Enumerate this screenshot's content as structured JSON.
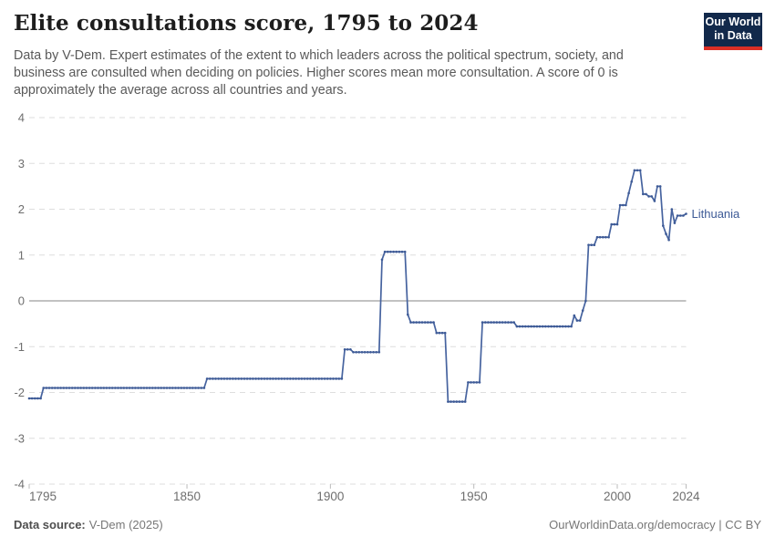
{
  "header": {
    "title": "Elite consultations score, 1795 to 2024",
    "subtitle_lines": [
      "Data by V-Dem. Expert estimates of the extent to which leaders across the political spectrum, society, and",
      "business are consulted when deciding on policies. Higher scores mean more consultation. A score of 0 is",
      "approximately the average across all countries and years."
    ]
  },
  "logo": {
    "line1": "Our World",
    "line2": "in Data",
    "bg_color": "#12294b",
    "accent_color": "#dc2f25"
  },
  "footer": {
    "source_label": "Data source:",
    "source_value": "V-Dem (2025)",
    "license": "OurWorldinData.org/democracy | CC BY"
  },
  "chart_data": {
    "type": "line",
    "title": "Elite consultations score, 1795 to 2024",
    "xlabel": "",
    "ylabel": "",
    "xlim": [
      1795,
      2024
    ],
    "ylim": [
      -4,
      4
    ],
    "x_ticks": [
      1795,
      1850,
      1900,
      1950,
      2000,
      2024
    ],
    "y_ticks": [
      4,
      3,
      2,
      1,
      0,
      -1,
      -2,
      -3,
      -4
    ],
    "grid": "horizontal dashed gridlines; solid line at 0; dashed baseline at -4",
    "legend": "entity label at end of line",
    "colors": {
      "line": "#46639f",
      "marker": "#3d5a96",
      "grid": "#dedede",
      "zero_line": "#9e9e9e",
      "tick_text": "#6e6e6e"
    },
    "series": [
      {
        "name": "Lithuania",
        "interpolation": "step-hold: value persists until next change point; one marker dot per year",
        "points": [
          [
            1795,
            -2.13
          ],
          [
            1800,
            -1.9
          ],
          [
            1857,
            -1.7
          ],
          [
            1905,
            -1.06
          ],
          [
            1908,
            -1.12
          ],
          [
            1918,
            0.9
          ],
          [
            1919,
            1.07
          ],
          [
            1927,
            -0.3
          ],
          [
            1928,
            -0.47
          ],
          [
            1937,
            -0.7
          ],
          [
            1941,
            -2.2
          ],
          [
            1948,
            -1.78
          ],
          [
            1953,
            -0.47
          ],
          [
            1965,
            -0.56
          ],
          [
            1985,
            -0.32
          ],
          [
            1986,
            -0.43
          ],
          [
            1988,
            -0.21
          ],
          [
            1989,
            0.0
          ],
          [
            1990,
            1.22
          ],
          [
            1993,
            1.39
          ],
          [
            1998,
            1.67
          ],
          [
            2001,
            2.09
          ],
          [
            2004,
            2.35
          ],
          [
            2005,
            2.6
          ],
          [
            2006,
            2.85
          ],
          [
            2009,
            2.33
          ],
          [
            2011,
            2.28
          ],
          [
            2013,
            2.18
          ],
          [
            2014,
            2.5
          ],
          [
            2016,
            1.64
          ],
          [
            2017,
            1.46
          ],
          [
            2018,
            1.33
          ],
          [
            2019,
            2.0
          ],
          [
            2020,
            1.7
          ],
          [
            2021,
            1.86
          ],
          [
            2024,
            1.9
          ]
        ]
      }
    ]
  }
}
